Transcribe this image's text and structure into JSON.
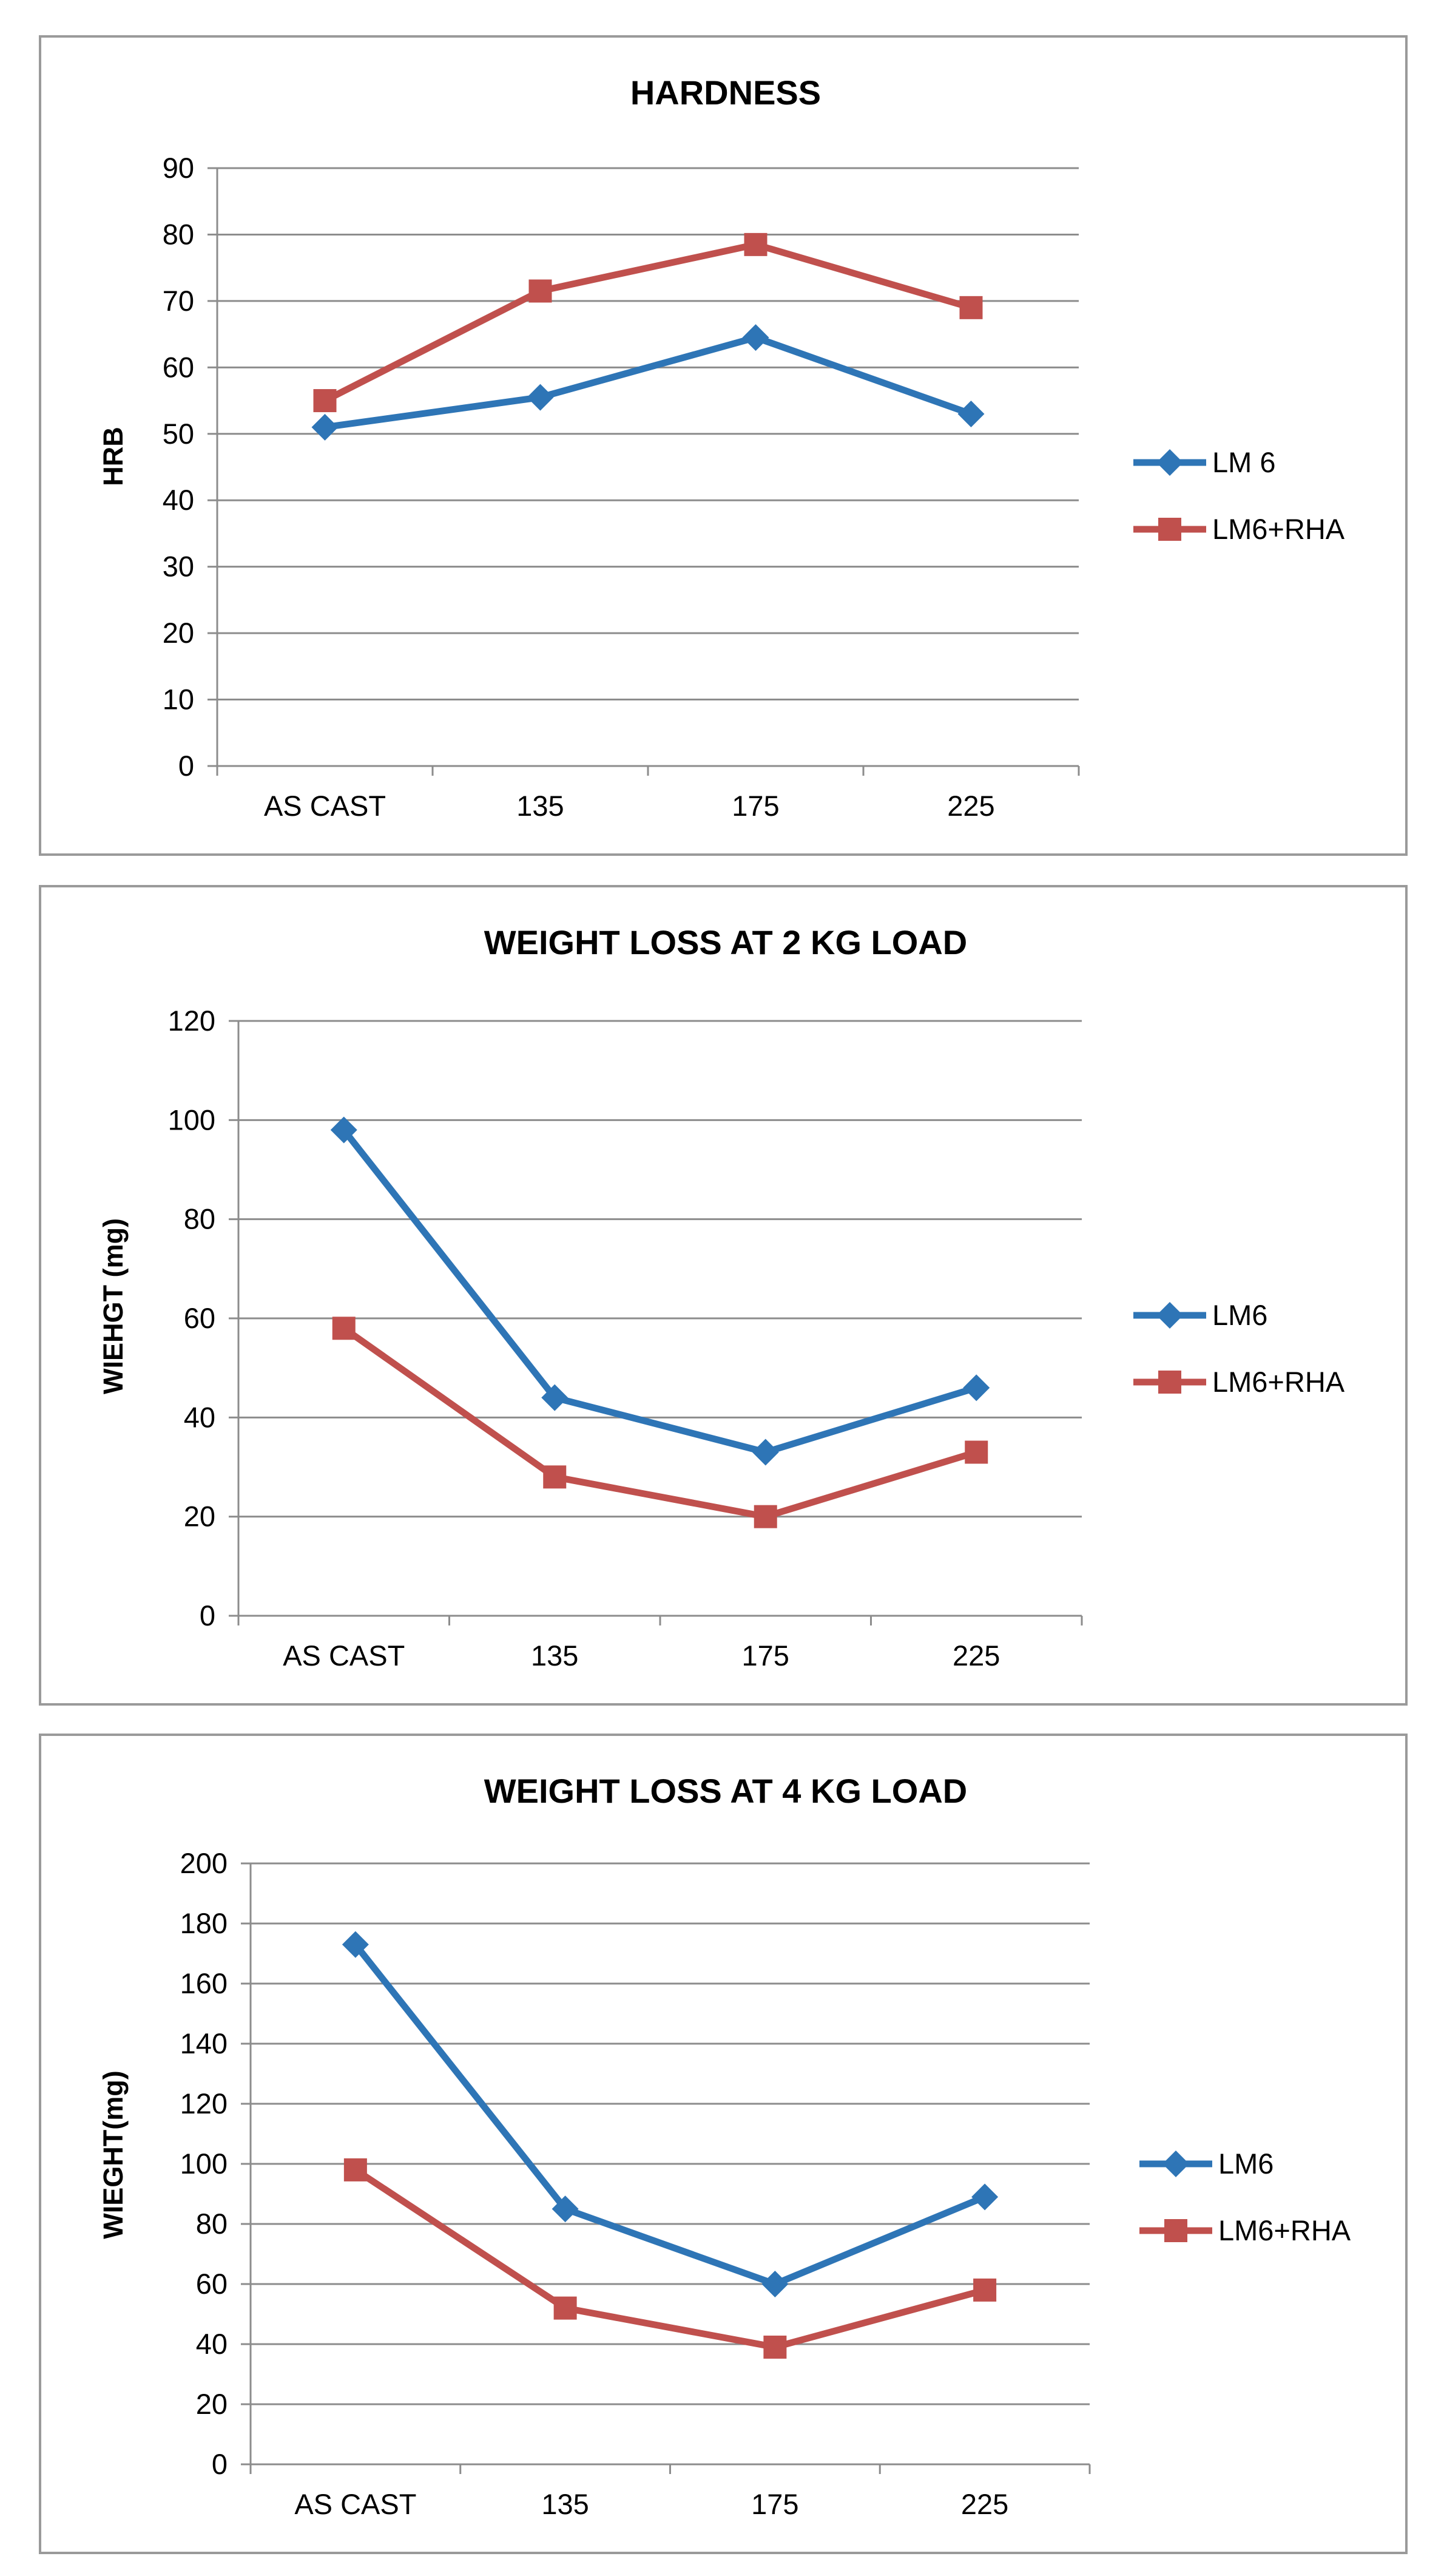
{
  "chart_data": [
    {
      "type": "line",
      "title": "HARDNESS",
      "xlabel": "",
      "ylabel": "HRB",
      "categories": [
        "AS CAST",
        "135",
        "175",
        "225"
      ],
      "ylim": [
        0,
        90
      ],
      "yticks": [
        "0",
        "10",
        "20",
        "30",
        "40",
        "50",
        "60",
        "70",
        "80",
        "90"
      ],
      "grid": true,
      "legend_position": "right",
      "series": [
        {
          "name": "LM 6",
          "color": "#2e75b6",
          "marker": "diamond",
          "values": [
            51,
            55.5,
            64.5,
            53
          ]
        },
        {
          "name": "LM6+RHA",
          "color": "#c0504d",
          "marker": "square",
          "values": [
            55,
            71.5,
            78.5,
            69
          ]
        }
      ]
    },
    {
      "type": "line",
      "title": "WEIGHT LOSS AT  2 KG LOAD",
      "xlabel": "",
      "ylabel": "WIEHGT (mg)",
      "categories": [
        "AS CAST",
        "135",
        "175",
        "225"
      ],
      "ylim": [
        0,
        120
      ],
      "yticks": [
        "0",
        "20",
        "40",
        "60",
        "80",
        "100",
        "120"
      ],
      "grid": true,
      "legend_position": "right",
      "series": [
        {
          "name": "LM6",
          "color": "#2e75b6",
          "marker": "diamond",
          "values": [
            98,
            44,
            33,
            46
          ]
        },
        {
          "name": "LM6+RHA",
          "color": "#c0504d",
          "marker": "square",
          "values": [
            58,
            28,
            20,
            33
          ]
        }
      ]
    },
    {
      "type": "line",
      "title": "WEIGHT LOSS AT 4 KG LOAD",
      "xlabel": "",
      "ylabel": "WIEGHT(mg)",
      "categories": [
        "AS CAST",
        "135",
        "175",
        "225"
      ],
      "ylim": [
        0,
        200
      ],
      "yticks": [
        "0",
        "20",
        "40",
        "60",
        "80",
        "100",
        "120",
        "140",
        "160",
        "180",
        "200"
      ],
      "grid": true,
      "legend_position": "right",
      "series": [
        {
          "name": "LM6",
          "color": "#2e75b6",
          "marker": "diamond",
          "values": [
            173,
            85,
            60,
            89
          ]
        },
        {
          "name": "LM6+RHA",
          "color": "#c0504d",
          "marker": "square",
          "values": [
            98,
            52,
            39,
            58
          ]
        }
      ]
    }
  ]
}
